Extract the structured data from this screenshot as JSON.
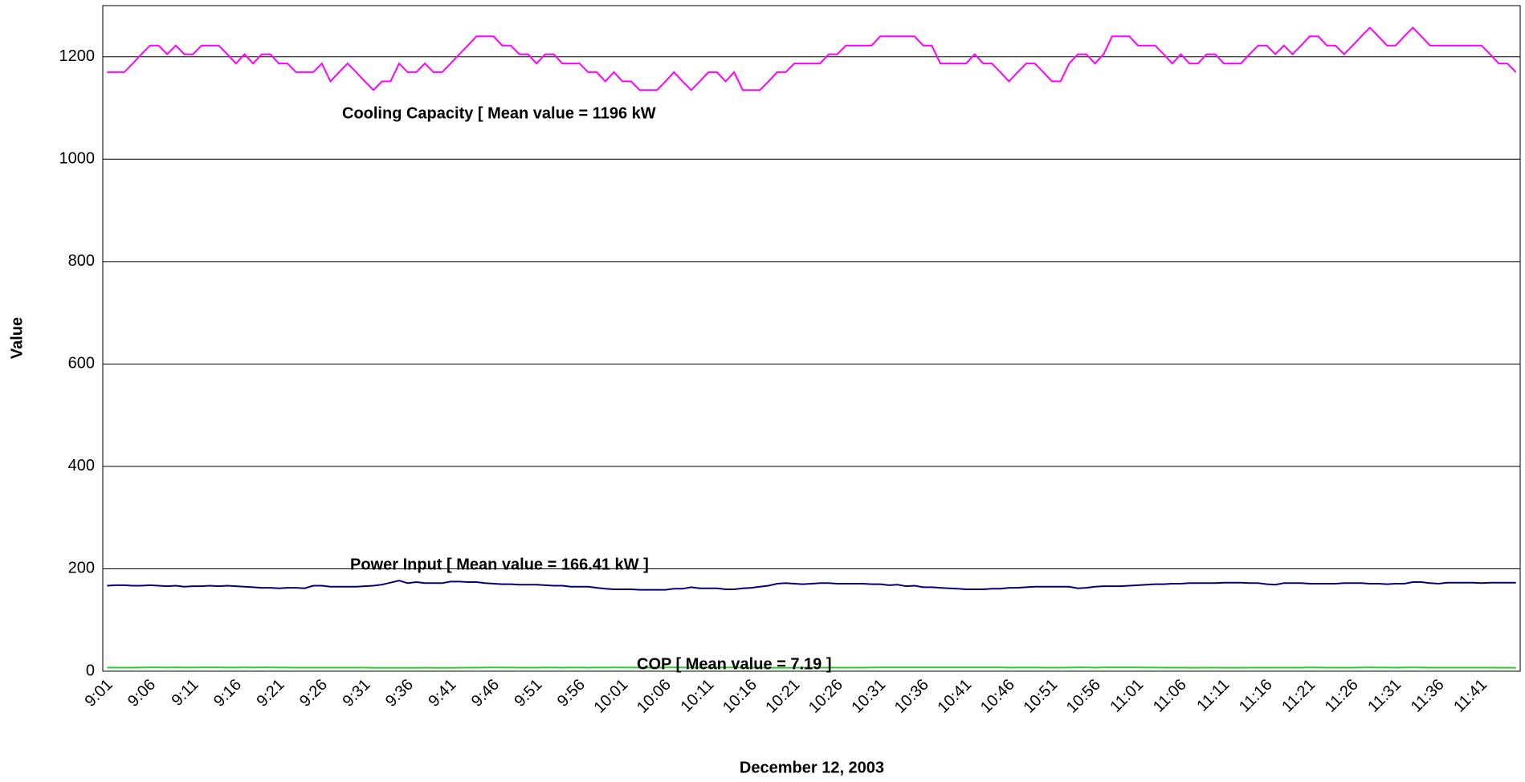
{
  "chart_data": {
    "type": "line",
    "x_label": "December 12, 2003",
    "y_label": "Value",
    "annotations": [
      "Cooling Capacity [ Mean value = 1196 kW",
      "Power Input [ Mean value = 166.41 kW ]",
      "COP [ Mean value = 7.19 ]"
    ],
    "categories": [
      "9:01",
      null,
      null,
      null,
      null,
      "9:06",
      null,
      null,
      null,
      null,
      "9:11",
      null,
      null,
      null,
      null,
      "9:16",
      null,
      null,
      null,
      null,
      "9:21",
      null,
      null,
      null,
      null,
      "9:26",
      null,
      null,
      null,
      null,
      "9:31",
      null,
      null,
      null,
      null,
      "9:36",
      null,
      null,
      null,
      null,
      "9:41",
      null,
      null,
      null,
      null,
      "9:46",
      null,
      null,
      null,
      null,
      "9:51",
      null,
      null,
      null,
      null,
      "9:56",
      null,
      null,
      null,
      null,
      "10:01",
      null,
      null,
      null,
      null,
      "10:06",
      null,
      null,
      null,
      null,
      "10:11",
      null,
      null,
      null,
      null,
      "10:16",
      null,
      null,
      null,
      null,
      "10:21",
      null,
      null,
      null,
      null,
      "10:26",
      null,
      null,
      null,
      null,
      "10:31",
      null,
      null,
      null,
      null,
      "10:36",
      null,
      null,
      null,
      null,
      "10:41",
      null,
      null,
      null,
      null,
      "10:46",
      null,
      null,
      null,
      null,
      "10:51",
      null,
      null,
      null,
      null,
      "10:56",
      null,
      null,
      null,
      null,
      "11:01",
      null,
      null,
      null,
      null,
      "11:06",
      null,
      null,
      null,
      null,
      "11:11",
      null,
      null,
      null,
      null,
      "11:16",
      null,
      null,
      null,
      null,
      "11:21",
      null,
      null,
      null,
      null,
      "11:26",
      null,
      null,
      null,
      null,
      "11:31",
      null,
      null,
      null,
      null,
      "11:36",
      null,
      null,
      null,
      null,
      "11:41",
      null,
      null,
      null,
      null
    ],
    "series": [
      {
        "name": "Cooling Capacity",
        "color": "#ff00ff",
        "values": [
          1170,
          1170,
          1170,
          1187,
          1205,
          1222,
          1222,
          1205,
          1222,
          1205,
          1205,
          1222,
          1222,
          1222,
          1205,
          1187,
          1205,
          1187,
          1205,
          1205,
          1187,
          1187,
          1170,
          1170,
          1170,
          1187,
          1152,
          1170,
          1187,
          1170,
          1152,
          1135,
          1152,
          1152,
          1187,
          1170,
          1170,
          1187,
          1170,
          1170,
          1187,
          1205,
          1222,
          1240,
          1240,
          1240,
          1222,
          1222,
          1205,
          1205,
          1187,
          1205,
          1205,
          1187,
          1187,
          1187,
          1170,
          1170,
          1152,
          1170,
          1152,
          1152,
          1135,
          1135,
          1135,
          1152,
          1170,
          1152,
          1135,
          1152,
          1170,
          1170,
          1152,
          1170,
          1135,
          1135,
          1135,
          1152,
          1170,
          1170,
          1187,
          1187,
          1187,
          1187,
          1205,
          1205,
          1222,
          1222,
          1222,
          1222,
          1240,
          1240,
          1240,
          1240,
          1240,
          1222,
          1222,
          1187,
          1187,
          1187,
          1187,
          1205,
          1187,
          1187,
          1170,
          1152,
          1170,
          1187,
          1187,
          1170,
          1152,
          1152,
          1187,
          1205,
          1205,
          1187,
          1205,
          1240,
          1240,
          1240,
          1222,
          1222,
          1222,
          1205,
          1187,
          1205,
          1187,
          1187,
          1205,
          1205,
          1187,
          1187,
          1187,
          1205,
          1222,
          1222,
          1205,
          1222,
          1205,
          1222,
          1240,
          1240,
          1222,
          1222,
          1205,
          1222,
          1240,
          1257,
          1240,
          1222,
          1222,
          1240,
          1257,
          1240,
          1222,
          1222,
          1222,
          1222,
          1222,
          1222,
          1222,
          1205,
          1187,
          1187,
          1170
        ]
      },
      {
        "name": "Power Input",
        "color": "#000080",
        "values": [
          167,
          168,
          168,
          167,
          167,
          168,
          167,
          166,
          167,
          165,
          166,
          166,
          167,
          166,
          167,
          166,
          165,
          164,
          163,
          163,
          162,
          163,
          163,
          162,
          167,
          167,
          165,
          165,
          165,
          165,
          166,
          167,
          169,
          173,
          177,
          172,
          174,
          172,
          172,
          172,
          175,
          175,
          174,
          174,
          172,
          171,
          170,
          170,
          169,
          169,
          169,
          168,
          167,
          167,
          165,
          165,
          165,
          163,
          161,
          160,
          160,
          160,
          159,
          159,
          159,
          159,
          161,
          161,
          164,
          162,
          162,
          162,
          160,
          160,
          162,
          163,
          165,
          167,
          171,
          172,
          171,
          170,
          171,
          172,
          172,
          171,
          171,
          171,
          171,
          170,
          170,
          168,
          169,
          166,
          167,
          164,
          164,
          163,
          162,
          161,
          160,
          160,
          160,
          161,
          161,
          163,
          163,
          164,
          165,
          165,
          165,
          165,
          165,
          162,
          163,
          165,
          166,
          166,
          166,
          167,
          168,
          169,
          170,
          170,
          171,
          171,
          172,
          172,
          172,
          172,
          173,
          173,
          173,
          172,
          172,
          170,
          169,
          172,
          172,
          172,
          171,
          171,
          171,
          171,
          172,
          172,
          172,
          171,
          171,
          170,
          171,
          171,
          174,
          174,
          172,
          171,
          173,
          173,
          173,
          173,
          172,
          173,
          173,
          173,
          173
        ]
      },
      {
        "name": "COP",
        "color": "#33cc33",
        "values": [
          7.0,
          7.0,
          7.0,
          7.1,
          7.2,
          7.3,
          7.3,
          7.2,
          7.3,
          7.2,
          7.2,
          7.3,
          7.3,
          7.3,
          7.2,
          7.2,
          7.3,
          7.2,
          7.3,
          7.3,
          7.2,
          7.2,
          7.1,
          7.1,
          7.0,
          7.1,
          7.0,
          7.1,
          7.1,
          7.1,
          7.0,
          6.8,
          6.8,
          6.7,
          6.7,
          6.8,
          6.7,
          6.9,
          6.8,
          6.8,
          6.8,
          6.9,
          7.0,
          7.1,
          7.2,
          7.3,
          7.2,
          7.2,
          7.1,
          7.1,
          7.0,
          7.2,
          7.2,
          7.1,
          7.2,
          7.2,
          7.1,
          7.2,
          7.2,
          7.3,
          7.2,
          7.2,
          7.1,
          7.1,
          7.1,
          7.2,
          7.3,
          7.2,
          6.9,
          7.1,
          7.2,
          7.2,
          7.2,
          7.3,
          7.1,
          7.0,
          6.9,
          6.9,
          6.8,
          6.8,
          6.9,
          7.0,
          6.9,
          6.9,
          7.0,
          7.1,
          7.1,
          7.1,
          7.1,
          7.2,
          7.3,
          7.3,
          7.3,
          7.5,
          7.4,
          7.5,
          7.5,
          7.3,
          7.3,
          7.4,
          7.4,
          7.5,
          7.4,
          7.4,
          7.3,
          7.1,
          7.2,
          7.2,
          7.2,
          7.1,
          7.0,
          7.0,
          7.2,
          7.4,
          7.3,
          7.1,
          7.3,
          7.5,
          7.5,
          7.4,
          7.3,
          7.2,
          7.2,
          7.1,
          7.0,
          7.0,
          6.9,
          6.9,
          7.0,
          7.0,
          6.9,
          6.9,
          6.9,
          7.0,
          7.1,
          7.1,
          7.1,
          7.1,
          7.0,
          7.1,
          7.3,
          7.2,
          7.1,
          7.1,
          7.0,
          7.1,
          7.2,
          7.3,
          7.2,
          7.2,
          7.1,
          7.2,
          7.3,
          7.2,
          7.1,
          7.1,
          7.1,
          7.1,
          7.1,
          7.1,
          7.1,
          7.0,
          6.9,
          6.9,
          6.8
        ]
      }
    ],
    "ylim": [
      0,
      1300
    ],
    "yticks": [
      0,
      200,
      400,
      600,
      800,
      1000,
      1200
    ],
    "grid": true
  }
}
